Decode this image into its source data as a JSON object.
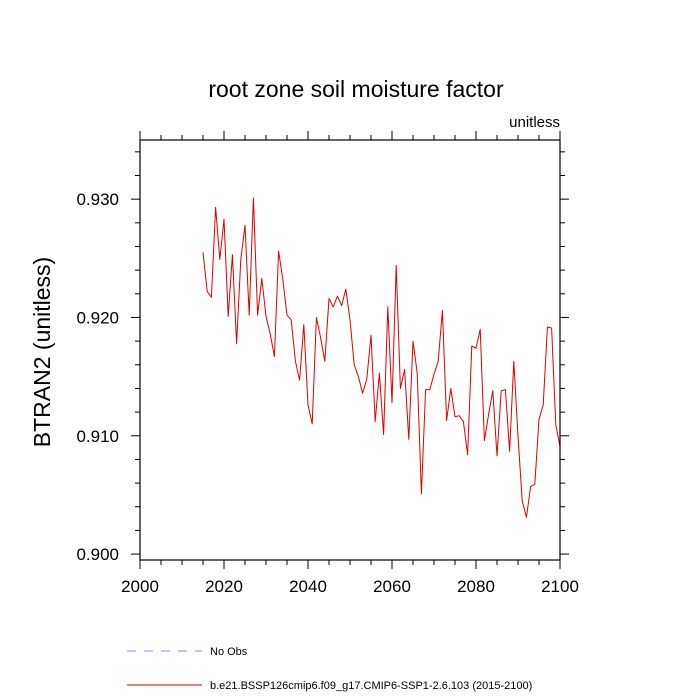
{
  "chart_data": {
    "type": "line",
    "title": "root zone soil moisture factor",
    "units_label": "unitless",
    "xlabel": "",
    "ylabel": "BTRAN2  (unitless)",
    "xlim": [
      2000,
      2100
    ],
    "ylim": [
      0.8995,
      0.935
    ],
    "x_ticks": [
      2000,
      2020,
      2040,
      2060,
      2080,
      2100
    ],
    "x_tick_labels": [
      "2000",
      "2020",
      "2040",
      "2060",
      "2080",
      "2100"
    ],
    "y_ticks": [
      0.9,
      0.91,
      0.92,
      0.93
    ],
    "y_tick_labels": [
      "0.900",
      "0.910",
      "0.920",
      "0.930"
    ],
    "x_minor_step": 5,
    "y_minor_step": 0.002,
    "grid": false,
    "legend_position": "bottom-left",
    "series": [
      {
        "name": "No Obs",
        "color": "#8a8aff",
        "dash": "dashed",
        "x": [],
        "values": []
      },
      {
        "name": "b.e21.BSSP126cmip6.f09_g17.CMIP6-SSP1-2.6.103 (2015-2100)",
        "color": "#e00000",
        "dash": "solid",
        "x": [
          2015,
          2016,
          2017,
          2018,
          2019,
          2020,
          2021,
          2022,
          2023,
          2024,
          2025,
          2026,
          2027,
          2028,
          2029,
          2030,
          2031,
          2032,
          2033,
          2034,
          2035,
          2036,
          2037,
          2038,
          2039,
          2040,
          2041,
          2042,
          2043,
          2044,
          2045,
          2046,
          2047,
          2048,
          2049,
          2050,
          2051,
          2052,
          2053,
          2054,
          2055,
          2056,
          2057,
          2058,
          2059,
          2060,
          2061,
          2062,
          2063,
          2064,
          2065,
          2066,
          2067,
          2068,
          2069,
          2070,
          2071,
          2072,
          2073,
          2074,
          2075,
          2076,
          2077,
          2078,
          2079,
          2080,
          2081,
          2082,
          2083,
          2084,
          2085,
          2086,
          2087,
          2088,
          2089,
          2090,
          2091,
          2092,
          2093,
          2094,
          2095,
          2096,
          2097,
          2098,
          2099,
          2100
        ],
        "values": [
          0.9255,
          0.9222,
          0.9217,
          0.9293,
          0.9249,
          0.9283,
          0.9201,
          0.9253,
          0.9178,
          0.9249,
          0.9278,
          0.9202,
          0.9301,
          0.9202,
          0.9233,
          0.9201,
          0.9186,
          0.9167,
          0.9256,
          0.9232,
          0.9202,
          0.9198,
          0.9163,
          0.9147,
          0.9194,
          0.9126,
          0.911,
          0.92,
          0.9183,
          0.9163,
          0.9216,
          0.9209,
          0.9218,
          0.921,
          0.9224,
          0.9198,
          0.916,
          0.915,
          0.9136,
          0.9148,
          0.9185,
          0.9112,
          0.9153,
          0.9101,
          0.9209,
          0.9128,
          0.9244,
          0.914,
          0.9156,
          0.9097,
          0.918,
          0.9153,
          0.9051,
          0.9139,
          0.9139,
          0.9152,
          0.9163,
          0.9206,
          0.9113,
          0.914,
          0.9116,
          0.9117,
          0.9112,
          0.9084,
          0.9176,
          0.9174,
          0.919,
          0.9096,
          0.9118,
          0.9138,
          0.9083,
          0.9138,
          0.9139,
          0.9087,
          0.9163,
          0.91,
          0.9045,
          0.9031,
          0.9057,
          0.9059,
          0.9114,
          0.9126,
          0.9192,
          0.9191,
          0.9109,
          0.9091
        ]
      }
    ]
  }
}
